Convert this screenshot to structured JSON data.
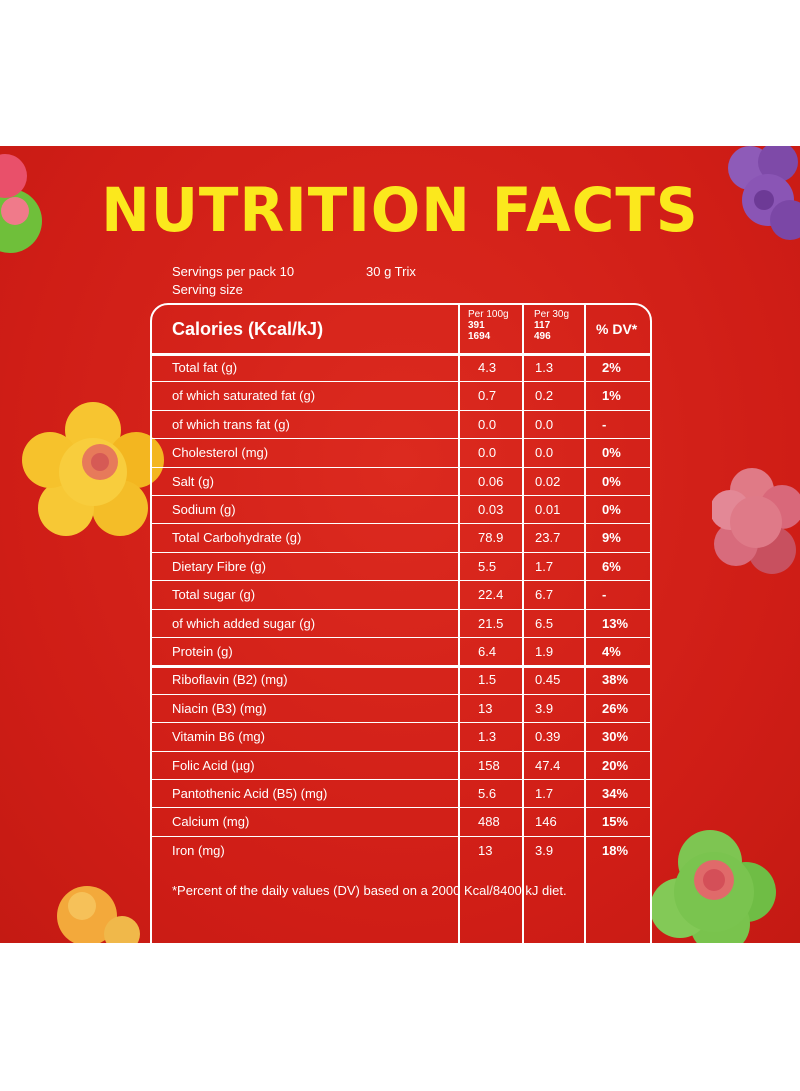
{
  "title": "NUTRITION FACTS",
  "servings_per_pack": "Servings  per pack 10",
  "serving_size_label": "Serving size",
  "serving_size_value": "30 g Trix",
  "header": {
    "calories_label": "Calories (Kcal/kJ)",
    "per100_label": "Per 100g",
    "per100_kcal": "391",
    "per100_kj": "1694",
    "per30_label": "Per 30g",
    "per30_kcal": "117",
    "per30_kj": "496",
    "dv_label": "% DV*"
  },
  "rows": [
    {
      "name": "Total fat (g)",
      "per100": "4.3",
      "per30": "1.3",
      "dv": "2%"
    },
    {
      "name": "of which saturated fat (g)",
      "per100": "0.7",
      "per30": "0.2",
      "dv": "1%"
    },
    {
      "name": "of which trans fat (g)",
      "per100": "0.0",
      "per30": "0.0",
      "dv": "-"
    },
    {
      "name": "Cholesterol (mg)",
      "per100": "0.0",
      "per30": "0.0",
      "dv": "0%"
    },
    {
      "name": "Salt (g)",
      "per100": "0.06",
      "per30": "0.02",
      "dv": "0%"
    },
    {
      "name": "Sodium (g)",
      "per100": "0.03",
      "per30": "0.01",
      "dv": "0%"
    },
    {
      "name": "Total Carbohydrate (g)",
      "per100": "78.9",
      "per30": "23.7",
      "dv": "9%"
    },
    {
      "name": "Dietary Fibre (g)",
      "per100": "5.5",
      "per30": "1.7",
      "dv": "6%"
    },
    {
      "name": "Total sugar (g)",
      "per100": "22.4",
      "per30": "6.7",
      "dv": "-"
    },
    {
      "name": "of which added sugar (g)",
      "per100": "21.5",
      "per30": "6.5",
      "dv": "13%"
    },
    {
      "name": "Protein (g)",
      "per100": "6.4",
      "per30": "1.9",
      "dv": "4%"
    },
    {
      "name": "Riboflavin (B2) (mg)",
      "per100": "1.5",
      "per30": "0.45",
      "dv": "38%"
    },
    {
      "name": "Niacin (B3) (mg)",
      "per100": "13",
      "per30": "3.9",
      "dv": "26%"
    },
    {
      "name": "Vitamin B6 (mg)",
      "per100": "1.3",
      "per30": "0.39",
      "dv": "30%"
    },
    {
      "name": "Folic Acid (µg)",
      "per100": "158",
      "per30": "47.4",
      "dv": "20%"
    },
    {
      "name": "Pantothenic Acid (B5) (mg)",
      "per100": "5.6",
      "per30": "1.7",
      "dv": "34%"
    },
    {
      "name": "Calcium (mg)",
      "per100": "488",
      "per30": "146",
      "dv": "15%"
    },
    {
      "name": "Iron (mg)",
      "per100": "13",
      "per30": "3.9",
      "dv": "18%"
    }
  ],
  "footnote": "*Percent of the daily values (DV) based on a 2000 Kcal/8400 kJ diet.",
  "colors": {
    "background": "#d5201a",
    "title": "#fbe81d",
    "text": "#ffffff"
  }
}
